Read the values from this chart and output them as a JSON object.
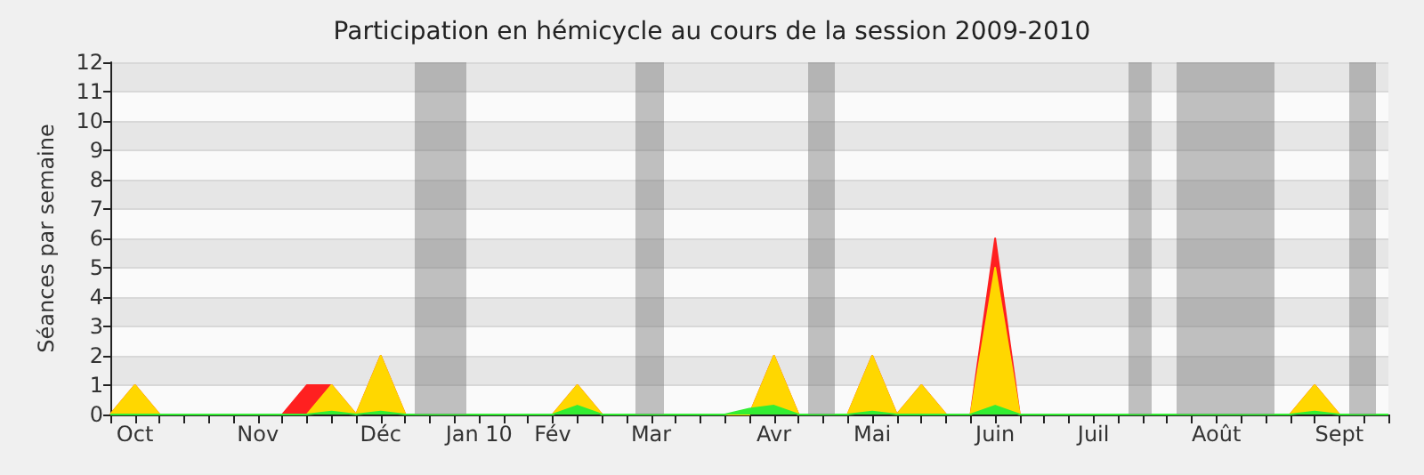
{
  "chart_data": {
    "type": "area",
    "title": "Participation en hémicycle au cours de la session 2009-2010",
    "ylabel": "Séances par semaine",
    "categories": [
      null,
      "Oct",
      null,
      null,
      null,
      null,
      "Nov",
      null,
      null,
      null,
      null,
      "Déc",
      null,
      null,
      null,
      "Jan 10",
      null,
      null,
      "Fév",
      null,
      null,
      null,
      "Mar",
      null,
      null,
      null,
      null,
      "Avr",
      null,
      null,
      null,
      "Mai",
      null,
      null,
      null,
      null,
      "Juin",
      null,
      null,
      null,
      "Juil",
      null,
      null,
      null,
      null,
      "Août",
      null,
      null,
      null,
      null,
      "Sept",
      null,
      null
    ],
    "series": [
      {
        "color": "#ff2020",
        "values": [
          0,
          1,
          0,
          0,
          0,
          0,
          0,
          0,
          1,
          1,
          0,
          2,
          0,
          0,
          0,
          0,
          0,
          0,
          0,
          1,
          0,
          0,
          0,
          0,
          0,
          0,
          0,
          2,
          0,
          0,
          0,
          2,
          0,
          1,
          0,
          0,
          6,
          0,
          0,
          0,
          0,
          0,
          0,
          0,
          0,
          0,
          0,
          0,
          0,
          1,
          0,
          0,
          0
        ]
      },
      {
        "color": "#ffd700",
        "values": [
          0,
          1,
          0,
          0,
          0,
          0,
          0,
          0,
          0,
          1,
          0,
          2,
          0,
          0,
          0,
          0,
          0,
          0,
          0,
          1,
          0,
          0,
          0,
          0,
          0,
          0,
          0,
          2,
          0,
          0,
          0,
          2,
          0,
          1,
          0,
          0,
          5,
          0,
          0,
          0,
          0,
          0,
          0,
          0,
          0,
          0,
          0,
          0,
          0,
          1,
          0,
          0,
          0
        ]
      },
      {
        "color": "#33ee33",
        "values": [
          0,
          0,
          0,
          0,
          0,
          0,
          0,
          0,
          0,
          0.1,
          0,
          0.1,
          0,
          0,
          0,
          0,
          0,
          0,
          0,
          0.3,
          0,
          0,
          0,
          0,
          0,
          0,
          0.2,
          0.3,
          0,
          0,
          0,
          0.1,
          0,
          0,
          0,
          0,
          0.3,
          0,
          0,
          0,
          0,
          0,
          0,
          0,
          0,
          0,
          0,
          0,
          0,
          0.1,
          0,
          0,
          0
        ]
      }
    ],
    "ylim": [
      0,
      12
    ],
    "yticks": [
      0,
      1,
      2,
      3,
      4,
      5,
      6,
      7,
      8,
      9,
      10,
      11,
      12
    ],
    "grid": "y"
  }
}
